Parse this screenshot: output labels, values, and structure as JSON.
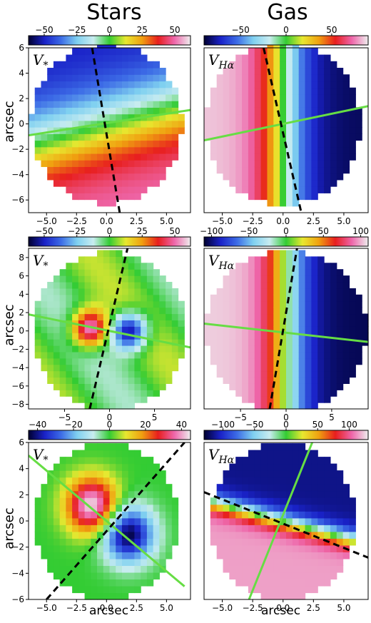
{
  "columns": [
    "Stars",
    "Gas"
  ],
  "ylabel": "arcsec",
  "xlabel": "arcsec",
  "colors": {
    "line_major": "#66dd44",
    "line_minor": "#000000",
    "colormap": [
      "#000030",
      "#1a22c8",
      "#3c6be6",
      "#7fd0f0",
      "#c8ecf0",
      "#33cc33",
      "#e8e830",
      "#f0a010",
      "#e81e1e",
      "#ee66aa",
      "#eeeeee"
    ]
  },
  "chart_data": [
    {
      "type": "heatmap",
      "panel": "row1-stars",
      "label": "V",
      "label_sub": "*",
      "xlim": [
        -6.5,
        7
      ],
      "ylim": [
        -7,
        6
      ],
      "xticks": [
        "-5.0",
        "-2.5",
        "0.0",
        "2.5",
        "5.0"
      ],
      "yticks": [
        "6",
        "4",
        "2",
        "0",
        "-2",
        "-4",
        "-6"
      ],
      "cbar_ticks": [
        "-50",
        "-25",
        "0",
        "25",
        "50"
      ],
      "cbar_range": [
        -62,
        62
      ],
      "field": {
        "kind": "rot",
        "pa": -75,
        "amp": 52,
        "scale": 3.5,
        "radius": 6.3
      },
      "major_axis": {
        "x1": -6.5,
        "y1": -0.9,
        "x2": 7,
        "y2": 1.1
      },
      "minor_axis": {
        "x1": -1.2,
        "y1": 6,
        "x2": 1.1,
        "y2": -7
      }
    },
    {
      "type": "heatmap",
      "panel": "row1-gas",
      "label": "V",
      "label_sub": "Hα",
      "xlim": [
        -6.5,
        7
      ],
      "ylim": [
        -7,
        6
      ],
      "xticks": [
        "-5.0",
        "-2.5",
        "0.0",
        "2.5",
        "5.0"
      ],
      "yticks": [],
      "cbar_ticks": [
        "-50",
        "0",
        "50"
      ],
      "cbar_range": [
        -90,
        90
      ],
      "field": {
        "kind": "rot",
        "pa": 180,
        "amp": 85,
        "scale": 2.2,
        "radius": 6.4
      },
      "major_axis": {
        "x1": -6.5,
        "y1": -1.3,
        "x2": 7,
        "y2": 1.4
      },
      "minor_axis": {
        "x1": -1.6,
        "y1": 6,
        "x2": 1.5,
        "y2": -7
      }
    },
    {
      "type": "heatmap",
      "panel": "row2-stars",
      "label": "V",
      "label_sub": "*",
      "xlim": [
        -9,
        9
      ],
      "ylim": [
        -8.5,
        9
      ],
      "xticks": [
        "-5",
        "0",
        "5"
      ],
      "yticks": [
        "8",
        "6",
        "4",
        "2",
        "0",
        "-2",
        "-4",
        "-6",
        "-8"
      ],
      "cbar_ticks": [
        "-50",
        "-25",
        "0",
        "25",
        "50"
      ],
      "cbar_range": [
        -62,
        62
      ],
      "field": {
        "kind": "twin",
        "p1": [
          -2.2,
          0.3
        ],
        "p2": [
          2.2,
          0
        ],
        "amp": 60,
        "width": 1.4,
        "radius": 8.6,
        "bg": 10
      },
      "major_axis": {
        "x1": -9,
        "y1": 1.8,
        "x2": 9,
        "y2": -1.8
      },
      "minor_axis": {
        "x1": -2.2,
        "y1": -8.5,
        "x2": 2,
        "y2": 9
      }
    },
    {
      "type": "heatmap",
      "panel": "row2-gas",
      "label": "V",
      "label_sub": "Hα",
      "xlim": [
        -9,
        9
      ],
      "ylim": [
        -8.5,
        9
      ],
      "xticks": [
        "-5",
        "0",
        "5"
      ],
      "yticks": [],
      "cbar_ticks": [
        "-100",
        "-50",
        "0",
        "50",
        "100"
      ],
      "cbar_range": [
        -110,
        110
      ],
      "field": {
        "kind": "rot",
        "pa": 180,
        "amp": 105,
        "scale": 2.6,
        "radius": 8.8
      },
      "major_axis": {
        "x1": -9,
        "y1": 0.8,
        "x2": 9,
        "y2": -1.2
      },
      "minor_axis": {
        "x1": -1.8,
        "y1": -8.5,
        "x2": 1.2,
        "y2": 9
      }
    },
    {
      "type": "heatmap",
      "panel": "row3-stars",
      "label": "V",
      "label_sub": "*",
      "xlim": [
        -6.5,
        7
      ],
      "ylim": [
        -6,
        6
      ],
      "xticks": [
        "-5.0",
        "-2.5",
        "0.0",
        "2.5",
        "5.0"
      ],
      "yticks": [
        "6",
        "4",
        "2",
        "0",
        "-2",
        "-4",
        "-6"
      ],
      "cbar_ticks": [
        "-40",
        "-20",
        "0",
        "20",
        "40"
      ],
      "cbar_range": [
        -45,
        45
      ],
      "field": {
        "kind": "twin",
        "p1": [
          -1.2,
          1.2
        ],
        "p2": [
          1.8,
          -1
        ],
        "amp": 45,
        "width": 1.5,
        "radius": 6,
        "bg": 0
      },
      "major_axis": {
        "x1": -6.5,
        "y1": 5,
        "x2": 6.5,
        "y2": -5
      },
      "minor_axis": {
        "x1": -5,
        "y1": -6,
        "x2": 6.5,
        "y2": 6
      }
    },
    {
      "type": "heatmap",
      "panel": "row3-gas",
      "label": "V",
      "label_sub": "Hα",
      "xlim": [
        -6.5,
        7
      ],
      "ylim": [
        -6,
        6
      ],
      "xticks": [
        "-5.0",
        "-2.5",
        "0.0",
        "2.5",
        "5.0"
      ],
      "yticks": [],
      "cbar_ticks": [
        "-100",
        "-50",
        "0",
        "50",
        "100"
      ],
      "cbar_range": [
        -130,
        130
      ],
      "field": {
        "kind": "split",
        "amp": 115,
        "radius": 6
      },
      "major_axis": {
        "x1": -2.8,
        "y1": -6,
        "x2": 2.4,
        "y2": 6
      },
      "minor_axis": {
        "x1": -6.5,
        "y1": 2.2,
        "x2": 7,
        "y2": -2.8
      }
    }
  ]
}
